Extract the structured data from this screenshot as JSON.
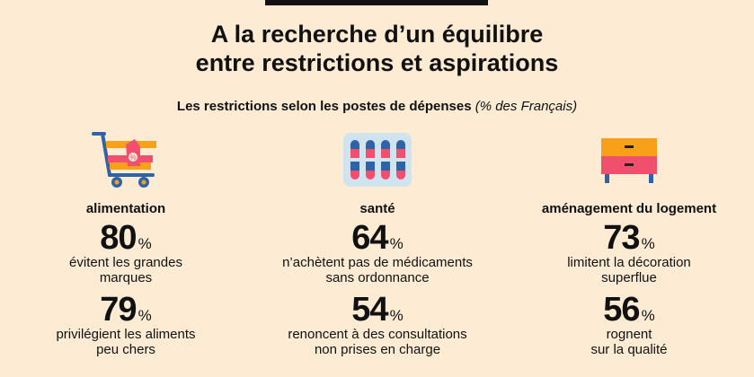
{
  "title": {
    "line1": "A la recherche d’un équilibre",
    "line2": "entre restrictions et aspirations"
  },
  "subtitle": {
    "main": "Les restrictions selon les postes de dépenses",
    "note": "(% des Français)"
  },
  "colors": {
    "background": "#fdebd3",
    "accent_orange": "#f9a01b",
    "accent_pink": "#f0506e",
    "accent_blue": "#2e63a8"
  },
  "columns": [
    {
      "icon": "shopping-cart-icon",
      "category": "alimentation",
      "stats": [
        {
          "value": "80",
          "unit": "%",
          "desc1": "évitent les grandes",
          "desc2": "marques"
        },
        {
          "value": "79",
          "unit": "%",
          "desc1": "privilégient les aliments",
          "desc2": "peu chers"
        }
      ]
    },
    {
      "icon": "pill-pack-icon",
      "category": "santé",
      "stats": [
        {
          "value": "64",
          "unit": "%",
          "desc1": "n’achètent pas de médicaments",
          "desc2": "sans ordonnance"
        },
        {
          "value": "54",
          "unit": "%",
          "desc1": "renoncent à des consultations",
          "desc2": "non prises en charge"
        }
      ]
    },
    {
      "icon": "drawer-cabinet-icon",
      "category": "aménagement du logement",
      "stats": [
        {
          "value": "73",
          "unit": "%",
          "desc1": "limitent la décoration",
          "desc2": "superflue"
        },
        {
          "value": "56",
          "unit": "%",
          "desc1": "rognent",
          "desc2": "sur la qualité"
        }
      ]
    }
  ]
}
